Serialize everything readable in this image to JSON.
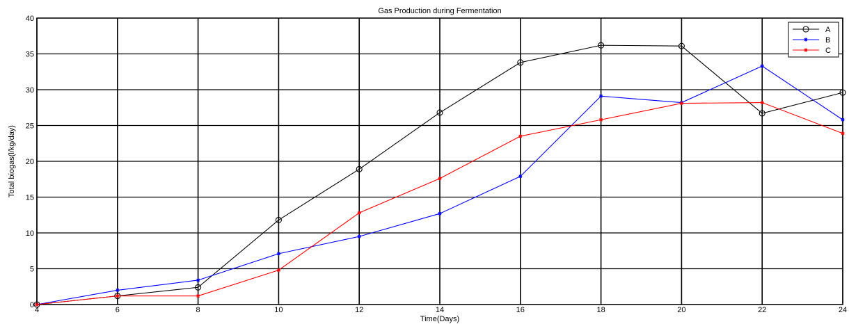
{
  "chart_data": {
    "type": "line",
    "title": "Gas Production during Fermentation",
    "xlabel": "Time(Days)",
    "ylabel": "Total biogas(l/kg/day)",
    "xlim": [
      4,
      24
    ],
    "ylim": [
      0,
      40
    ],
    "xticks": [
      4,
      6,
      8,
      10,
      12,
      14,
      16,
      18,
      20,
      22,
      24
    ],
    "yticks": [
      0,
      5,
      10,
      15,
      20,
      25,
      30,
      35,
      40
    ],
    "grid": true,
    "legend_position": "top-right",
    "x": [
      4,
      6,
      8,
      10,
      12,
      14,
      16,
      18,
      20,
      22,
      24
    ],
    "series": [
      {
        "name": "A",
        "color": "#000000",
        "marker": "circle",
        "values": [
          0,
          1.2,
          2.4,
          11.8,
          18.9,
          26.8,
          33.8,
          36.2,
          36.1,
          26.7,
          29.6
        ]
      },
      {
        "name": "B",
        "color": "#0000ff",
        "marker": "star",
        "values": [
          0,
          2.0,
          3.4,
          7.1,
          9.5,
          12.7,
          17.9,
          29.1,
          28.2,
          33.3,
          25.8
        ]
      },
      {
        "name": "C",
        "color": "#ff0000",
        "marker": "star",
        "values": [
          0,
          1.2,
          1.2,
          4.8,
          12.8,
          17.6,
          23.5,
          25.8,
          28.1,
          28.2,
          23.9
        ]
      }
    ]
  }
}
